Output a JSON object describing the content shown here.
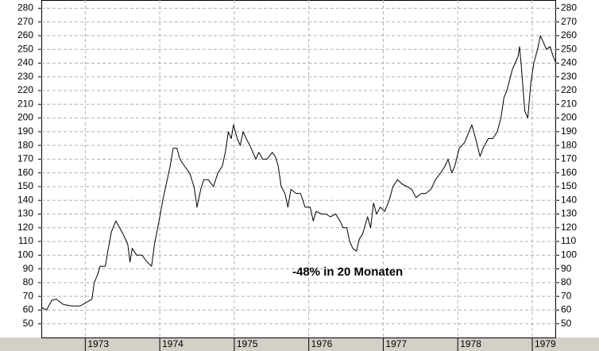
{
  "chart_data": {
    "type": "line",
    "annotation": "-48% in 20 Monaten",
    "x": [
      1972.41,
      1972.48,
      1972.55,
      1972.61,
      1972.66,
      1972.71,
      1972.82,
      1972.93,
      1973.03,
      1973.09,
      1973.12,
      1973.16,
      1973.2,
      1973.27,
      1973.31,
      1973.35,
      1973.41,
      1973.46,
      1973.51,
      1973.57,
      1973.6,
      1973.63,
      1973.69,
      1973.76,
      1973.83,
      1973.89,
      1973.93,
      1973.99,
      1974.04,
      1974.1,
      1974.14,
      1974.18,
      1974.23,
      1974.27,
      1974.33,
      1974.4,
      1974.46,
      1974.5,
      1974.55,
      1974.59,
      1974.65,
      1974.72,
      1974.78,
      1974.84,
      1974.88,
      1974.92,
      1974.96,
      1974.99,
      1975.04,
      1975.08,
      1975.12,
      1975.16,
      1975.21,
      1975.25,
      1975.29,
      1975.33,
      1975.38,
      1975.44,
      1975.51,
      1975.55,
      1975.59,
      1975.63,
      1975.68,
      1975.72,
      1975.76,
      1975.83,
      1975.89,
      1975.95,
      1976.02,
      1976.06,
      1976.1,
      1976.17,
      1976.23,
      1976.29,
      1976.36,
      1976.42,
      1976.46,
      1976.51,
      1976.55,
      1976.59,
      1976.64,
      1976.68,
      1976.72,
      1976.79,
      1976.83,
      1976.87,
      1976.91,
      1976.96,
      1977.02,
      1977.08,
      1977.13,
      1977.19,
      1977.25,
      1977.32,
      1977.38,
      1977.44,
      1977.51,
      1977.57,
      1977.64,
      1977.7,
      1977.77,
      1977.83,
      1977.87,
      1977.92,
      1977.96,
      1978.02,
      1978.09,
      1978.15,
      1978.19,
      1978.24,
      1978.3,
      1978.34,
      1978.41,
      1978.47,
      1978.53,
      1978.58,
      1978.62,
      1978.66,
      1978.73,
      1978.77,
      1978.81,
      1978.83,
      1978.85,
      1978.9,
      1978.94,
      1978.98,
      1979.02,
      1979.07,
      1979.11,
      1979.15,
      1979.19,
      1979.24,
      1979.28,
      1979.32
    ],
    "series": [
      {
        "color": "#000000",
        "values": [
          62,
          60,
          67,
          68,
          66,
          64,
          63,
          63,
          66,
          68,
          80,
          85,
          92,
          92,
          105,
          117,
          125,
          120,
          115,
          108,
          95,
          105,
          100,
          100,
          95,
          92,
          108,
          125,
          140,
          155,
          165,
          178,
          178,
          170,
          165,
          160,
          150,
          135,
          148,
          155,
          155,
          150,
          160,
          165,
          175,
          190,
          185,
          195,
          185,
          180,
          190,
          185,
          180,
          175,
          170,
          175,
          170,
          170,
          175,
          172,
          165,
          150,
          145,
          135,
          148,
          145,
          145,
          135,
          135,
          125,
          132,
          130,
          130,
          128,
          130,
          125,
          120,
          120,
          110,
          105,
          103,
          112,
          115,
          128,
          120,
          138,
          130,
          135,
          132,
          140,
          150,
          155,
          152,
          150,
          148,
          142,
          145,
          145,
          148,
          155,
          160,
          165,
          170,
          160,
          165,
          178,
          182,
          190,
          195,
          185,
          172,
          178,
          185,
          185,
          190,
          200,
          215,
          220,
          235,
          240,
          245,
          252,
          240,
          205,
          200,
          225,
          240,
          250,
          260,
          255,
          250,
          252,
          245,
          240
        ]
      }
    ],
    "xlim": [
      1972.41,
      1979.32
    ],
    "xticks": [
      1973,
      1974,
      1975,
      1976,
      1977,
      1978,
      1979
    ],
    "ylim": [
      40,
      286
    ],
    "yticks": [
      50,
      60,
      70,
      80,
      90,
      100,
      110,
      120,
      130,
      140,
      150,
      160,
      170,
      180,
      190,
      200,
      210,
      220,
      230,
      240,
      250,
      260,
      270,
      280
    ],
    "grid": true
  }
}
